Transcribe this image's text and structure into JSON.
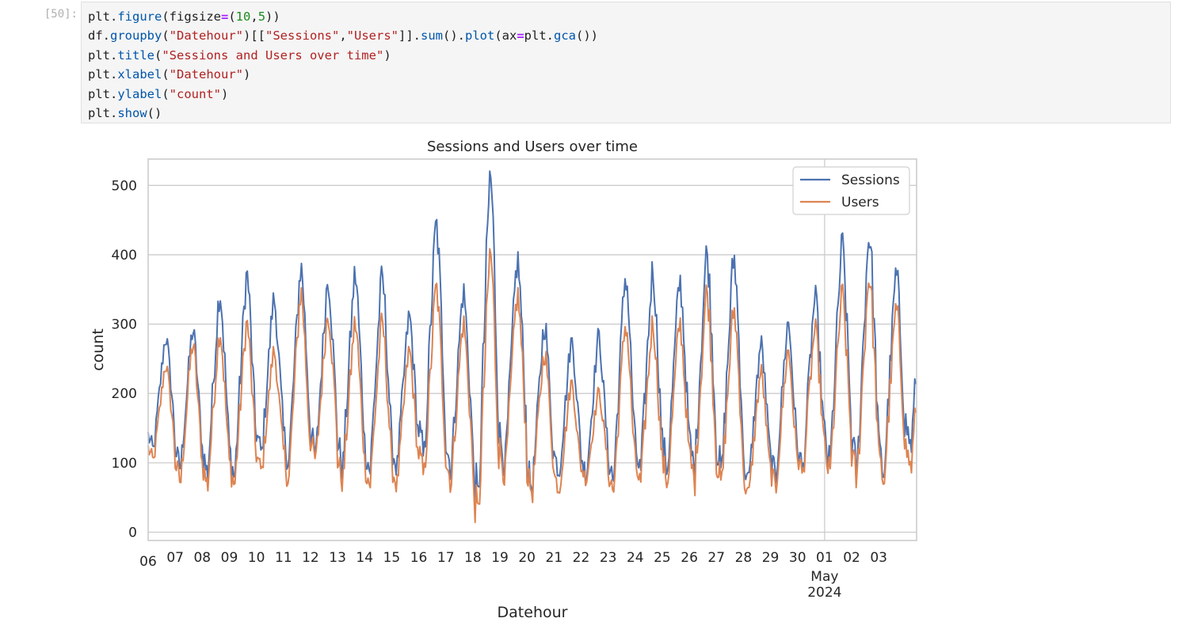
{
  "cell": {
    "prompt": "[50]:",
    "code_lines": [
      "plt.figure(figsize=(10,5))",
      "df.groupby(\"Datehour\")[[\"Sessions\",\"Users\"]].sum().plot(ax=plt.gca())",
      "plt.title(\"Sessions and Users over time\")",
      "plt.xlabel(\"Datehour\")",
      "plt.ylabel(\"count\")",
      "plt.show()"
    ]
  },
  "colors": {
    "sessions": "#4c72b0",
    "users": "#dd8452",
    "grid": "#cccccc",
    "axes_edge": "#cccccc"
  },
  "chart_data": {
    "type": "line",
    "title": "Sessions and Users over time",
    "xlabel": "Datehour",
    "ylabel": "count",
    "ylim": [
      -12,
      538
    ],
    "yticks": [
      0,
      100,
      200,
      300,
      400,
      500
    ],
    "x_unit": "day index starting 2024-04-06",
    "xlim": [
      0,
      28.4
    ],
    "xtick_labels": [
      "06",
      "07",
      "08",
      "09",
      "10",
      "11",
      "12",
      "13",
      "14",
      "15",
      "16",
      "17",
      "18",
      "19",
      "20",
      "21",
      "22",
      "23",
      "24",
      "25",
      "26",
      "27",
      "28",
      "29",
      "30",
      "01",
      "02",
      "03"
    ],
    "xtick_extra": {
      "at": 25,
      "lines": [
        "May",
        "2024"
      ]
    },
    "legend": {
      "position": "upper right",
      "entries": [
        "Sessions",
        "Users"
      ]
    },
    "series": [
      {
        "name": "Sessions",
        "peaks": [
          280,
          290,
          345,
          370,
          335,
          380,
          365,
          370,
          365,
          310,
          440,
          345,
          510,
          390,
          300,
          275,
          280,
          370,
          375,
          360,
          400,
          395,
          270,
          300,
          335,
          410,
          430,
          370,
          370
        ],
        "troughs": [
          115,
          90,
          80,
          75,
          110,
          100,
          105,
          90,
          85,
          90,
          100,
          90,
          30,
          95,
          60,
          85,
          80,
          70,
          80,
          90,
          85,
          80,
          70,
          75,
          85,
          90,
          80,
          80,
          120
        ]
      },
      {
        "name": "Users",
        "peaks": [
          240,
          270,
          290,
          300,
          260,
          345,
          315,
          300,
          300,
          260,
          350,
          300,
          400,
          340,
          260,
          215,
          200,
          300,
          300,
          300,
          345,
          320,
          230,
          260,
          290,
          340,
          370,
          320,
          310
        ],
        "troughs": [
          100,
          70,
          65,
          65,
          85,
          75,
          100,
          70,
          65,
          65,
          75,
          70,
          12,
          80,
          55,
          60,
          75,
          55,
          65,
          70,
          70,
          65,
          50,
          60,
          80,
          80,
          70,
          70,
          90
        ]
      }
    ]
  }
}
